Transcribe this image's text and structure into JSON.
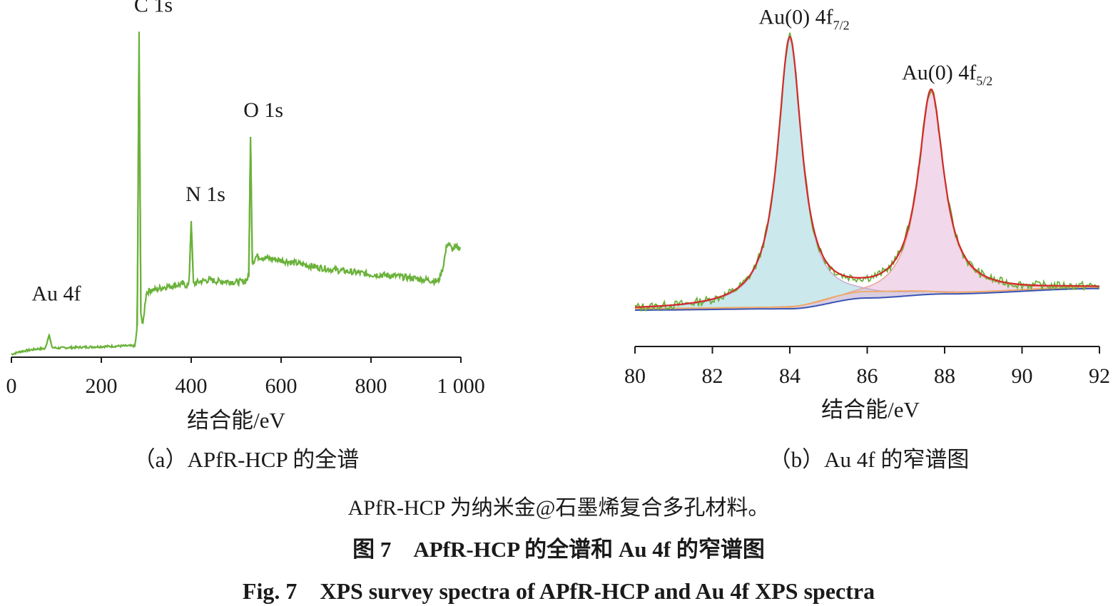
{
  "colors": {
    "survey_line": "#6ab23a",
    "fit_envelope": "#d12b2b",
    "component1_fill": "#a8d8df",
    "component2_fill": "#e6b8d8",
    "background_blue": "#3a54b4",
    "background_orange": "#f0a860",
    "raw_green": "#6ab23a",
    "axis": "#1a1a1a"
  },
  "chart_data": [
    {
      "type": "line",
      "panel_caption": "（a）APfR-HCP 的全谱",
      "xlabel": "结合能/eV",
      "ylabel": "",
      "xlim": [
        0,
        1000
      ],
      "x_ticks": [
        0,
        200,
        400,
        600,
        800,
        1000
      ],
      "x_tick_labels": [
        "0",
        "200",
        "400",
        "600",
        "800",
        "1 000"
      ],
      "grid": false,
      "annotations": [
        {
          "text": "Au 4f",
          "x": 84
        },
        {
          "text": "C 1s",
          "x": 284
        },
        {
          "text": "N 1s",
          "x": 400
        },
        {
          "text": "O 1s",
          "x": 532
        }
      ],
      "series": [
        {
          "x": [
            0,
            20,
            40,
            60,
            75,
            84,
            90,
            100,
            150,
            200,
            250,
            275,
            280,
            284,
            288,
            292,
            300,
            310,
            320,
            340,
            360,
            380,
            395,
            400,
            405,
            420,
            440,
            460,
            480,
            500,
            520,
            528,
            532,
            536,
            545,
            560,
            580,
            600,
            650,
            700,
            750,
            800,
            850,
            900,
            950,
            960,
            970,
            980,
            990,
            1000
          ],
          "y": [
            0,
            4,
            6,
            8,
            8,
            28,
            10,
            9,
            10,
            11,
            12,
            12,
            40,
            460,
            60,
            40,
            88,
            92,
            92,
            96,
            98,
            100,
            98,
            190,
            100,
            104,
            106,
            104,
            104,
            103,
            104,
            110,
            310,
            130,
            140,
            138,
            136,
            134,
            128,
            122,
            118,
            114,
            112,
            108,
            104,
            124,
            160,
            150,
            152,
            152
          ]
        }
      ]
    },
    {
      "type": "line",
      "panel_caption": "（b）Au 4f 的窄谱图",
      "xlabel": "结合能/eV",
      "ylabel": "",
      "xlim": [
        80,
        92
      ],
      "x_ticks": [
        80,
        82,
        84,
        86,
        88,
        90,
        92
      ],
      "x_tick_labels": [
        "80",
        "82",
        "84",
        "86",
        "88",
        "90",
        "92"
      ],
      "grid": false,
      "annotations": [
        {
          "text": "Au(0) 4f",
          "subscript": "7/2",
          "x": 84.0
        },
        {
          "text": "Au(0) 4f",
          "subscript": "5/2",
          "x": 87.7
        }
      ],
      "peaks": [
        {
          "center": 84.0,
          "height": 100,
          "width": 0.38
        },
        {
          "center": 87.65,
          "height": 75,
          "width": 0.4
        }
      ],
      "background": {
        "x": [
          80,
          84,
          86,
          88,
          92
        ],
        "y": [
          0,
          0.5,
          4.5,
          6,
          8
        ]
      }
    }
  ],
  "notes": {
    "material": "APfR-HCP 为纳米金@石墨烯复合多孔材料。"
  },
  "caption": {
    "cn": "图 7　APfR-HCP 的全谱和 Au 4f 的窄谱图",
    "en": "Fig. 7　XPS survey spectra of APfR-HCP and Au 4f XPS spectra"
  }
}
